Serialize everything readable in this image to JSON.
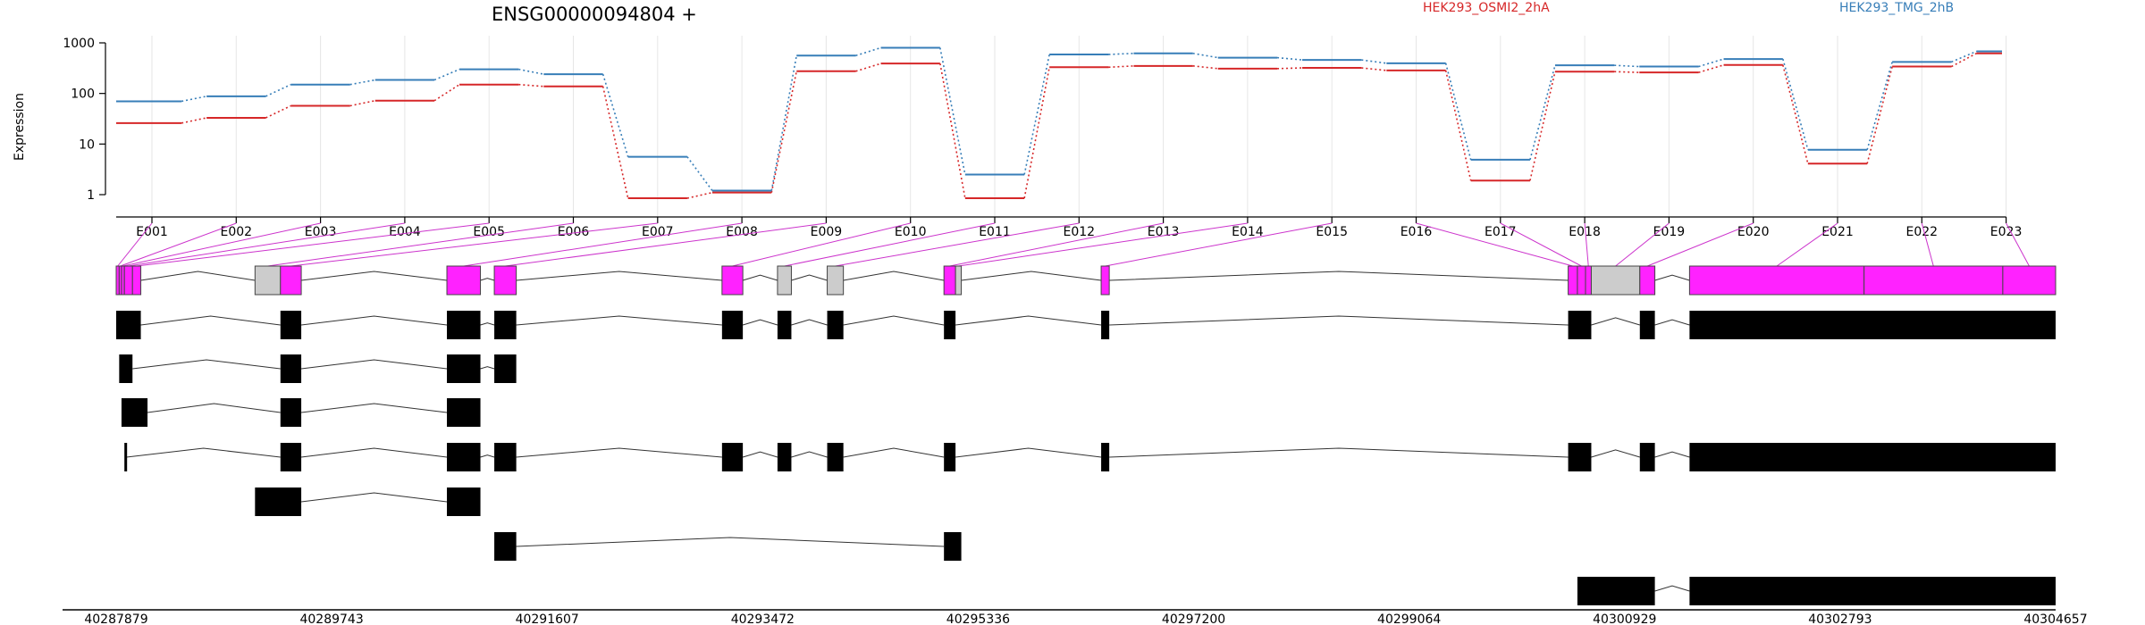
{
  "chart_data": {
    "type": "line",
    "title": "ENSG00000094804 +",
    "ylabel": "Expression",
    "yscale": "log",
    "ylim": [
      1,
      1000
    ],
    "yticks": [
      "1",
      "10",
      "100",
      "1000"
    ],
    "grid": "vertical dotted at exon centers",
    "legend_placement": "top-right",
    "colors": {
      "series_a": "#d62728",
      "series_b": "#377eb8",
      "connector": "#cc33cc",
      "exon_highlight": "#ff22ff",
      "exon_other": "#cccccc"
    },
    "categories": [
      "E001",
      "E002",
      "E003",
      "E004",
      "E005",
      "E006",
      "E007",
      "E008",
      "E009",
      "E010",
      "E011",
      "E012",
      "E013",
      "E014",
      "E015",
      "E016",
      "E017",
      "E018",
      "E019",
      "E020",
      "E021",
      "E022",
      "E023"
    ],
    "series": [
      {
        "name": "HEK293_OSMI2_2hA",
        "values": [
          26,
          33,
          57,
          72,
          150,
          138,
          0.85,
          1.1,
          275,
          390,
          0.85,
          330,
          350,
          310,
          320,
          285,
          1.9,
          270,
          260,
          365,
          4.1,
          340,
          620
        ]
      },
      {
        "name": "HEK293_TMG_2hB",
        "values": [
          70,
          88,
          150,
          185,
          300,
          240,
          5.6,
          1.2,
          560,
          800,
          2.5,
          590,
          620,
          510,
          460,
          395,
          4.9,
          360,
          340,
          480,
          7.7,
          420,
          680
        ]
      }
    ],
    "genomic_axis": {
      "start": 40287879,
      "end": 40304657,
      "tick_labels": [
        "40287879",
        "40289743",
        "40291607",
        "40293472",
        "40295336",
        "40297200",
        "40299064",
        "40300929",
        "40302793",
        "40304657"
      ]
    },
    "gene_model": {
      "exons": [
        {
          "id": "E001",
          "start": 40287879,
          "end": 40287905,
          "hl": true
        },
        {
          "id": "E002",
          "start": 40287905,
          "end": 40287925,
          "hl": true
        },
        {
          "id": "E003",
          "start": 40287925,
          "end": 40287950,
          "hl": true
        },
        {
          "id": "E004",
          "start": 40287950,
          "end": 40288020,
          "hl": true
        },
        {
          "id": "E005",
          "start": 40288020,
          "end": 40288092,
          "hl": true
        },
        {
          "id": "E006",
          "start": 40289080,
          "end": 40289300,
          "hl": false
        },
        {
          "id": "E007",
          "start": 40289300,
          "end": 40289480,
          "hl": true
        },
        {
          "id": "E008",
          "start": 40290740,
          "end": 40291030,
          "hl": true
        },
        {
          "id": "E009",
          "start": 40291150,
          "end": 40291340,
          "hl": true
        },
        {
          "id": "E010",
          "start": 40293120,
          "end": 40293300,
          "hl": true
        },
        {
          "id": "E011",
          "start": 40293600,
          "end": 40293720,
          "hl": false
        },
        {
          "id": "E012",
          "start": 40294030,
          "end": 40294170,
          "hl": false
        },
        {
          "id": "E013",
          "start": 40295040,
          "end": 40295140,
          "hl": true
        },
        {
          "id": "E014",
          "start": 40295140,
          "end": 40295190,
          "hl": false
        },
        {
          "id": "E015",
          "start": 40296400,
          "end": 40296470,
          "hl": true
        },
        {
          "id": "E016",
          "start": 40300440,
          "end": 40300520,
          "hl": true
        },
        {
          "id": "E017",
          "start": 40300520,
          "end": 40300590,
          "hl": true
        },
        {
          "id": "E018",
          "start": 40300590,
          "end": 40300640,
          "hl": true
        },
        {
          "id": "E019",
          "start": 40300640,
          "end": 40301060,
          "hl": false
        },
        {
          "id": "E020",
          "start": 40301060,
          "end": 40301190,
          "hl": true
        },
        {
          "id": "E021",
          "start": 40301490,
          "end": 40303000,
          "hl": true
        },
        {
          "id": "E022",
          "start": 40303000,
          "end": 40304200,
          "hl": true
        },
        {
          "id": "E023",
          "start": 40304200,
          "end": 40304657,
          "hl": true
        }
      ],
      "transcripts": [
        [
          [
            40287879,
            40288092
          ],
          [
            40289300,
            40289480
          ],
          [
            40290740,
            40291030
          ],
          [
            40291150,
            40291340
          ],
          [
            40293120,
            40293300
          ],
          [
            40293600,
            40293720
          ],
          [
            40294030,
            40294170
          ],
          [
            40295040,
            40295140
          ],
          [
            40296400,
            40296470
          ],
          [
            40300440,
            40300640
          ],
          [
            40301060,
            40301190
          ],
          [
            40301490,
            40304657
          ]
        ],
        [
          [
            40287905,
            40288020
          ],
          [
            40289300,
            40289480
          ],
          [
            40290740,
            40291030
          ],
          [
            40291150,
            40291340
          ]
        ],
        [
          [
            40287925,
            40288150
          ],
          [
            40289300,
            40289480
          ],
          [
            40290740,
            40291030
          ]
        ],
        [
          [
            40287950,
            40287968
          ],
          [
            40289300,
            40289480
          ],
          [
            40290740,
            40291030
          ],
          [
            40291150,
            40291340
          ],
          [
            40293120,
            40293300
          ],
          [
            40293600,
            40293720
          ],
          [
            40294030,
            40294170
          ],
          [
            40295040,
            40295140
          ],
          [
            40296400,
            40296470
          ],
          [
            40300440,
            40300640
          ],
          [
            40301060,
            40301190
          ],
          [
            40301490,
            40304657
          ]
        ],
        [
          [
            40289080,
            40289480
          ],
          [
            40290740,
            40291030
          ]
        ],
        [
          [
            40291150,
            40291340
          ],
          [
            40295040,
            40295190
          ]
        ],
        [
          [
            40300520,
            40301190
          ],
          [
            40301490,
            40304657
          ]
        ]
      ]
    }
  }
}
